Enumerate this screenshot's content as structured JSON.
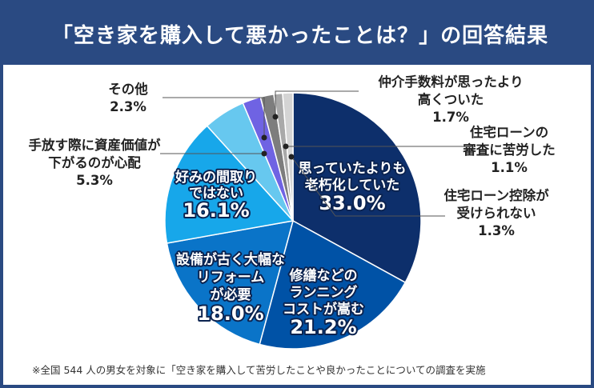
{
  "title": "「空き家を購入して悪かったことは？」の回答結果",
  "footnote": "※全国 544 人の男女を対象に「空き家を購入して苦労したことや良かったことについての調査を実施",
  "colors": {
    "header_bg": "#2a4a82",
    "text_dark": "#222222",
    "leader_line": "#555555",
    "inner_label_outline": "#0b2350"
  },
  "chart_data": {
    "type": "pie",
    "title": "「空き家を購入して悪かったことは？」の回答結果",
    "unit": "%",
    "slices": [
      {
        "label": "思っていたよりも老朽化していた",
        "label_lines": [
          "思っていたよりも",
          "老朽化していた"
        ],
        "value": 33.0,
        "display": "33.0%",
        "color": "#0d2f6b",
        "label_placement": "inside"
      },
      {
        "label": "修繕などのランニングコストが嵩む",
        "label_lines": [
          "修繕などの",
          "ランニング",
          "コストが嵩む"
        ],
        "value": 21.2,
        "display": "21.2%",
        "color": "#0052a6",
        "label_placement": "inside"
      },
      {
        "label": "設備が古く大幅なリフォームが必要",
        "label_lines": [
          "設備が古く大幅な",
          "リフォーム",
          "が必要"
        ],
        "value": 18.0,
        "display": "18.0%",
        "color": "#0a74c8",
        "label_placement": "inside"
      },
      {
        "label": "好みの間取りではない",
        "label_lines": [
          "好みの間取り",
          "ではない"
        ],
        "value": 16.1,
        "display": "16.1%",
        "color": "#17a7ea",
        "label_placement": "inside"
      },
      {
        "label": "手放す際に資産価値が下がるのが心配",
        "label_lines": [
          "手放す際に資産価値が",
          "下がるのが心配"
        ],
        "value": 5.3,
        "display": "5.3%",
        "color": "#67c8ef",
        "label_placement": "outside-left"
      },
      {
        "label": "その他",
        "label_lines": [
          "その他"
        ],
        "value": 2.3,
        "display": "2.3%",
        "color": "#6f63e3",
        "label_placement": "outside-left"
      },
      {
        "label": "仲介手数料が思ったより高くついた",
        "label_lines": [
          "仲介手数料が思ったより",
          "高くついた"
        ],
        "value": 1.7,
        "display": "1.7%",
        "color": "#7d7d7d",
        "label_placement": "outside-right"
      },
      {
        "label": "住宅ローンの審査に苦労した",
        "label_lines": [
          "住宅ローンの",
          "審査に苦労した"
        ],
        "value": 1.1,
        "display": "1.1%",
        "color": "#a9a9a9",
        "label_placement": "outside-right"
      },
      {
        "label": "住宅ローン控除が受けられない",
        "label_lines": [
          "住宅ローン控除が",
          "受けられない"
        ],
        "value": 1.3,
        "display": "1.3%",
        "color": "#d4d4d4",
        "label_placement": "outside-right"
      }
    ]
  }
}
